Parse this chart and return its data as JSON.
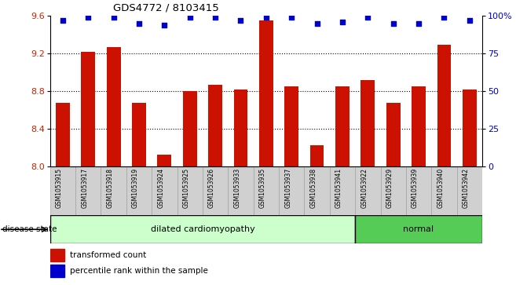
{
  "title": "GDS4772 / 8103415",
  "samples": [
    "GSM1053915",
    "GSM1053917",
    "GSM1053918",
    "GSM1053919",
    "GSM1053924",
    "GSM1053925",
    "GSM1053926",
    "GSM1053933",
    "GSM1053935",
    "GSM1053937",
    "GSM1053938",
    "GSM1053941",
    "GSM1053922",
    "GSM1053929",
    "GSM1053939",
    "GSM1053940",
    "GSM1053942"
  ],
  "bar_values": [
    8.68,
    9.22,
    9.27,
    8.68,
    8.13,
    8.8,
    8.87,
    8.82,
    9.55,
    8.85,
    8.23,
    8.85,
    8.92,
    8.68,
    8.85,
    9.29,
    8.82
  ],
  "percentile_values": [
    97,
    99,
    99,
    95,
    94,
    99,
    99,
    97,
    99,
    99,
    95,
    96,
    99,
    95,
    95,
    99,
    97
  ],
  "bar_color": "#cc1100",
  "dot_color": "#0000cc",
  "disease_groups": [
    {
      "label": "dilated cardiomyopathy",
      "start": 0,
      "end": 11,
      "color": "#ccffcc"
    },
    {
      "label": "normal",
      "start": 12,
      "end": 16,
      "color": "#55cc55"
    }
  ],
  "ylim_left": [
    8.0,
    9.6
  ],
  "ylim_right": [
    0,
    100
  ],
  "yticks_left": [
    8.0,
    8.4,
    8.8,
    9.2,
    9.6
  ],
  "yticks_right": [
    0,
    25,
    50,
    75,
    100
  ],
  "ytick_labels_right": [
    "0",
    "25",
    "50",
    "75",
    "100%"
  ],
  "grid_values": [
    8.4,
    8.8,
    9.2
  ],
  "disease_label": "disease state",
  "legend_bar_label": "transformed count",
  "legend_dot_label": "percentile rank within the sample",
  "bg_color": "#ffffff",
  "label_area_color": "#d0d0d0"
}
